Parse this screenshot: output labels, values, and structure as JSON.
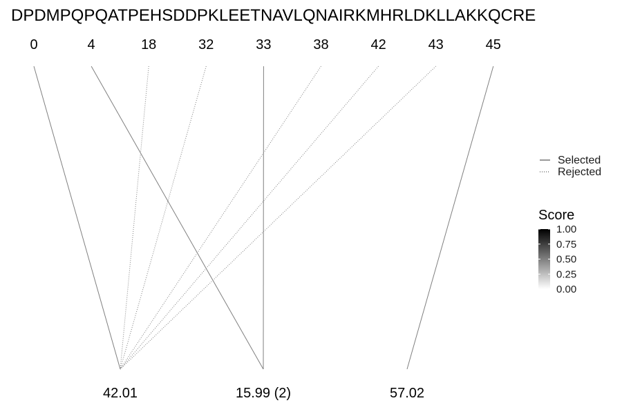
{
  "chart_data": {
    "type": "diagram",
    "sequence": "DPDMPQPQATPEHSDDPKLEETNAVLQNAIRKMHRLDKLLAKKQCRE",
    "positions": [
      "0",
      "4",
      "18",
      "32",
      "33",
      "38",
      "42",
      "43",
      "45"
    ],
    "masses": [
      "42.01",
      "15.99 (2)",
      "57.02"
    ],
    "links": [
      {
        "position": "0",
        "mass": "42.01",
        "status": "Selected",
        "score": 0.55
      },
      {
        "position": "4",
        "mass": "15.99 (2)",
        "status": "Selected",
        "score": 0.55
      },
      {
        "position": "18",
        "mass": "42.01",
        "status": "Rejected",
        "score": 0.55
      },
      {
        "position": "32",
        "mass": "42.01",
        "status": "Rejected",
        "score": 0.55
      },
      {
        "position": "33",
        "mass": "15.99 (2)",
        "status": "Selected",
        "score": 0.55
      },
      {
        "position": "38",
        "mass": "42.01",
        "status": "Rejected",
        "score": 0.55
      },
      {
        "position": "42",
        "mass": "42.01",
        "status": "Rejected",
        "score": 0.55
      },
      {
        "position": "43",
        "mass": "42.01",
        "status": "Rejected",
        "score": 0.55
      },
      {
        "position": "45",
        "mass": "57.02",
        "status": "Selected",
        "score": 0.55
      }
    ],
    "legend": {
      "linetype": [
        {
          "label": "Selected",
          "style": "solid"
        },
        {
          "label": "Rejected",
          "style": "dotted"
        }
      ],
      "score": {
        "title": "Score",
        "ticks": [
          "1.00",
          "0.75",
          "0.50",
          "0.25",
          "0.00"
        ],
        "range": [
          0,
          1
        ],
        "colors": {
          "high": "#000000",
          "low": "#ffffff"
        }
      },
      "placement": "right"
    },
    "line_color": "#7f7f7f"
  }
}
